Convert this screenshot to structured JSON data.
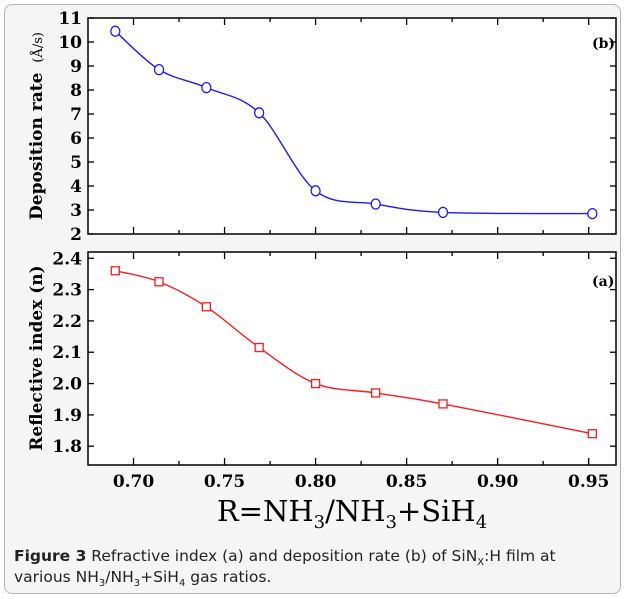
{
  "chart_data": [
    {
      "id": "b",
      "type": "line",
      "panel_label": "(b)",
      "ylabel": "Deposition rate",
      "ylabel_unit": "(Å/s)",
      "xlim": [
        0.675,
        0.965
      ],
      "ylim": [
        2,
        11
      ],
      "yticks": [
        "2",
        "3",
        "4",
        "5",
        "6",
        "7",
        "8",
        "9",
        "10",
        "11"
      ],
      "marker": "circle",
      "color": "#1a1aff",
      "x": [
        0.69,
        0.714,
        0.74,
        0.769,
        0.8,
        0.833,
        0.87,
        0.952
      ],
      "y": [
        10.45,
        8.85,
        8.1,
        7.05,
        3.8,
        3.25,
        2.9,
        2.85
      ]
    },
    {
      "id": "a",
      "type": "line",
      "panel_label": "(a)",
      "ylabel": "Reflective index (n)",
      "xlim": [
        0.675,
        0.965
      ],
      "ylim": [
        1.74,
        2.42
      ],
      "yticks": [
        "1.8",
        "1.9",
        "2.0",
        "2.1",
        "2.2",
        "2.3",
        "2.4"
      ],
      "xticks": [
        "0.70",
        "0.75",
        "0.80",
        "0.85",
        "0.90",
        "0.95"
      ],
      "marker": "square",
      "color": "#ff1a1a",
      "x": [
        0.69,
        0.714,
        0.74,
        0.769,
        0.8,
        0.833,
        0.87,
        0.952
      ],
      "y": [
        2.36,
        2.325,
        2.245,
        2.115,
        2.0,
        1.97,
        1.935,
        1.84
      ]
    }
  ],
  "xlabel": {
    "main": "R=NH",
    "sub1": "3",
    "mid": "/NH",
    "sub2": "3",
    "end": "+SiH",
    "sub3": "4"
  },
  "caption": {
    "label": "Figure 3",
    "text1": " Refractive index (a) and deposition rate (b) of SiN",
    "sub_x": "X",
    "text2": ":H film at various NH",
    "sub_a": "3",
    "text3": "/NH",
    "sub_b": "3",
    "text4": "+SiH",
    "sub_c": "4",
    "text5": " gas ratios."
  }
}
